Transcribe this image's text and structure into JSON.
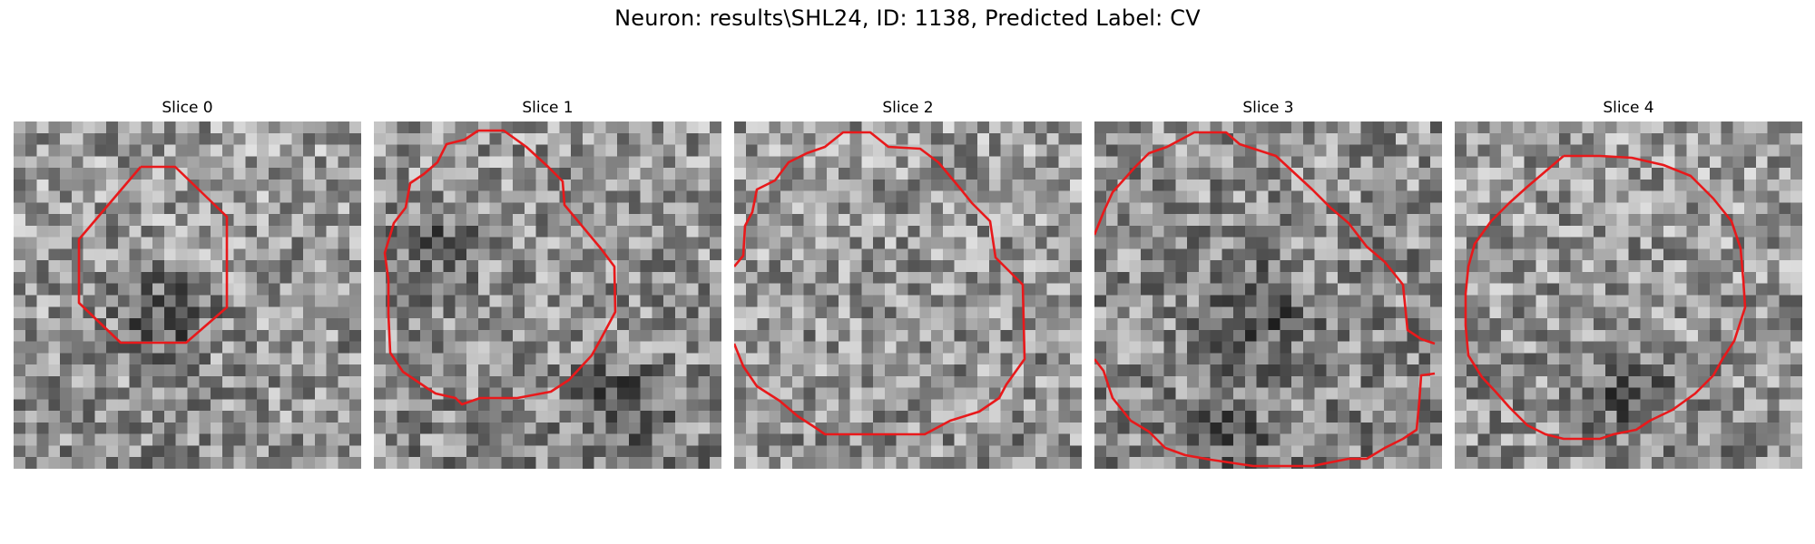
{
  "figure": {
    "title": "Neuron: results\\SHL24, ID: 1138, Predicted Label: CV",
    "contour_color": "#e8191b"
  },
  "panels": [
    {
      "title": "Slice 0"
    },
    {
      "title": "Slice 1"
    },
    {
      "title": "Slice 2"
    },
    {
      "title": "Slice 3"
    },
    {
      "title": "Slice 4"
    }
  ]
}
